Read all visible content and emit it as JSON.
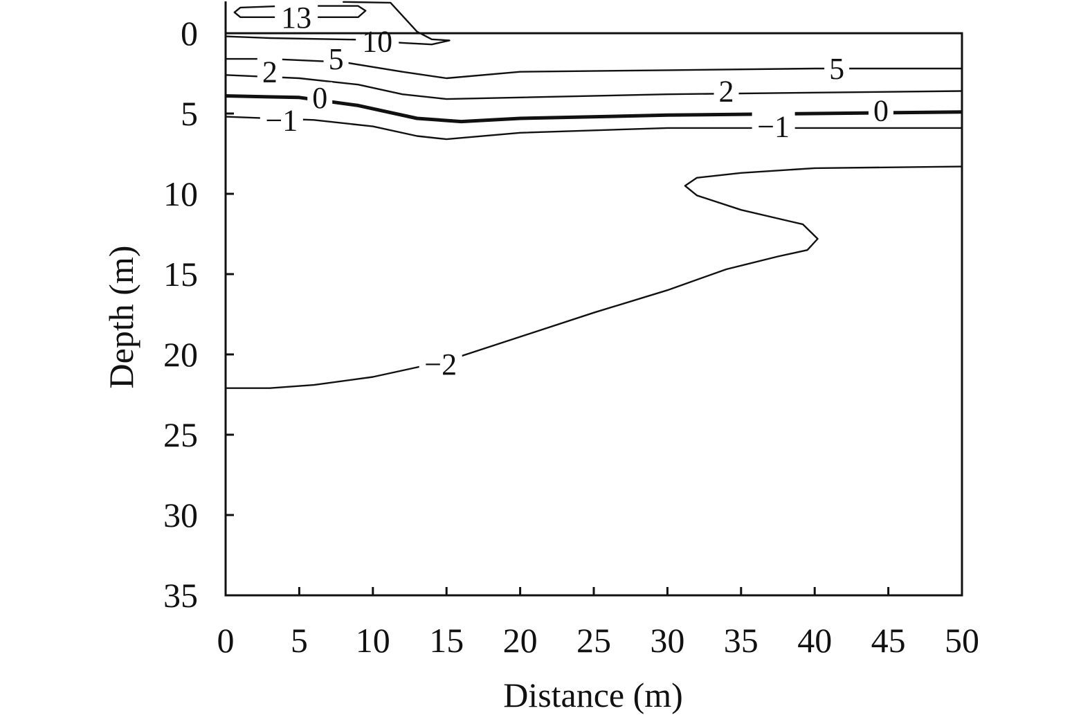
{
  "chart_data": {
    "type": "contour",
    "xlabel": "Distance (m)",
    "ylabel": "Depth (m)",
    "xlim": [
      0,
      50
    ],
    "ylim": [
      35,
      0
    ],
    "y_inverted": true,
    "grid": false,
    "xticks": [
      "0",
      "5",
      "10",
      "15",
      "20",
      "25",
      "30",
      "35",
      "40",
      "45",
      "50"
    ],
    "yticks": [
      "0",
      "5",
      "10",
      "15",
      "20",
      "25",
      "30",
      "35"
    ],
    "contours": [
      {
        "level": "13",
        "bold": false,
        "closed": true,
        "points": [
          [
            1,
            -1.6
          ],
          [
            4,
            -1.7
          ],
          [
            9,
            -1.7
          ],
          [
            9.5,
            -1.4
          ],
          [
            9,
            -1.0
          ],
          [
            4,
            -1.0
          ],
          [
            1,
            -1.0
          ],
          [
            0.6,
            -1.3
          ]
        ],
        "labels": [
          {
            "text": "13",
            "x": 4.8,
            "y": -1.0
          }
        ]
      },
      {
        "level": "10",
        "bold": false,
        "closed": false,
        "points": [
          [
            0,
            0.2
          ],
          [
            3,
            0.3
          ],
          [
            9,
            0.4
          ],
          [
            12,
            0.6
          ],
          [
            14,
            0.7
          ],
          [
            15.2,
            0.45
          ],
          [
            14.0,
            0.38
          ],
          [
            13.0,
            -0.1
          ],
          [
            11.2,
            -1.9
          ],
          [
            8,
            -1.95
          ]
        ],
        "labels": [
          {
            "text": "10",
            "x": 10.3,
            "y": 0.5
          }
        ]
      },
      {
        "level": "5",
        "bold": false,
        "closed": false,
        "points": [
          [
            0,
            1.6
          ],
          [
            3,
            1.6
          ],
          [
            8,
            1.8
          ],
          [
            12,
            2.4
          ],
          [
            15,
            2.8
          ],
          [
            20,
            2.4
          ],
          [
            30,
            2.3
          ],
          [
            40,
            2.2
          ],
          [
            50,
            2.2
          ]
        ],
        "labels": [
          {
            "text": "5",
            "x": 7.5,
            "y": 1.6
          },
          {
            "text": "5",
            "x": 41.5,
            "y": 2.2
          }
        ]
      },
      {
        "level": "2",
        "bold": false,
        "closed": false,
        "points": [
          [
            0,
            2.6
          ],
          [
            5,
            2.8
          ],
          [
            9,
            3.2
          ],
          [
            12,
            3.8
          ],
          [
            15,
            4.1
          ],
          [
            20,
            4.0
          ],
          [
            30,
            3.8
          ],
          [
            40,
            3.7
          ],
          [
            50,
            3.6
          ]
        ],
        "labels": [
          {
            "text": "2",
            "x": 3.0,
            "y": 2.4
          },
          {
            "text": "2",
            "x": 34.0,
            "y": 3.6
          }
        ]
      },
      {
        "level": "0",
        "bold": true,
        "closed": false,
        "points": [
          [
            0,
            3.9
          ],
          [
            5,
            4.0
          ],
          [
            9,
            4.5
          ],
          [
            13,
            5.3
          ],
          [
            16,
            5.5
          ],
          [
            20,
            5.3
          ],
          [
            30,
            5.1
          ],
          [
            40,
            5.0
          ],
          [
            50,
            4.9
          ]
        ],
        "labels": [
          {
            "text": "0",
            "x": 6.4,
            "y": 4.0
          },
          {
            "text": "0",
            "x": 44.5,
            "y": 4.8
          }
        ]
      },
      {
        "level": "−1",
        "bold": false,
        "closed": false,
        "points": [
          [
            0,
            5.2
          ],
          [
            6,
            5.4
          ],
          [
            10,
            5.8
          ],
          [
            13,
            6.4
          ],
          [
            15,
            6.6
          ],
          [
            20,
            6.2
          ],
          [
            30,
            5.9
          ],
          [
            40,
            5.9
          ],
          [
            50,
            5.9
          ]
        ],
        "labels": [
          {
            "text": "−1",
            "x": 3.8,
            "y": 5.4
          },
          {
            "text": "−1",
            "x": 37.2,
            "y": 5.8
          }
        ]
      },
      {
        "level": "−2",
        "bold": false,
        "closed": false,
        "points": [
          [
            0,
            22.1
          ],
          [
            3,
            22.1
          ],
          [
            6,
            21.9
          ],
          [
            10,
            21.4
          ],
          [
            15,
            20.4
          ],
          [
            20,
            18.9
          ],
          [
            25,
            17.4
          ],
          [
            30,
            16.0
          ],
          [
            34,
            14.7
          ],
          [
            37.5,
            13.9
          ],
          [
            39.5,
            13.5
          ],
          [
            40.2,
            12.8
          ],
          [
            39.2,
            11.9
          ],
          [
            35,
            11.0
          ],
          [
            32,
            10.1
          ],
          [
            31.2,
            9.5
          ],
          [
            32,
            9.0
          ],
          [
            35,
            8.7
          ],
          [
            40,
            8.4
          ],
          [
            50,
            8.3
          ]
        ],
        "labels": [
          {
            "text": "−2",
            "x": 14.6,
            "y": 20.6
          }
        ]
      }
    ]
  }
}
